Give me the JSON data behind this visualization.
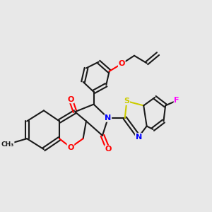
{
  "background_color": "#e8e8e8",
  "bond_color": "#1a1a1a",
  "bond_width": 1.5,
  "atom_colors": {
    "O": "#ff0000",
    "N": "#0000ff",
    "S": "#cccc00",
    "F": "#ff00ff",
    "C": "#1a1a1a"
  },
  "font_size": 8.0,
  "figsize": [
    3.0,
    3.0
  ],
  "dpi": 100,
  "xlim": [
    -3.2,
    4.8
  ],
  "ylim": [
    -2.5,
    3.8
  ]
}
